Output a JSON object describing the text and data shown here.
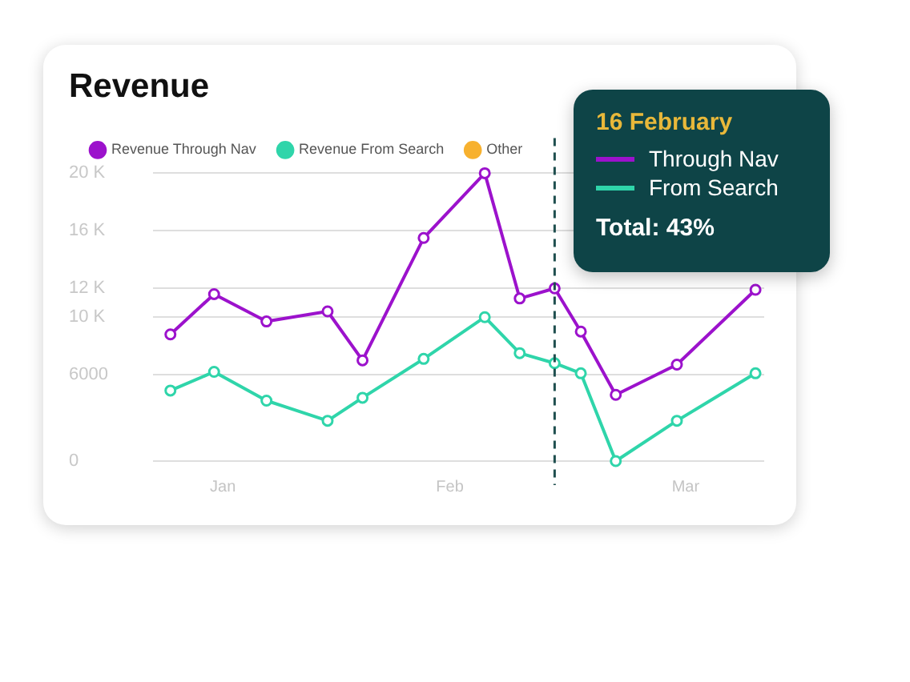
{
  "chart_data": {
    "type": "line",
    "title": "Revenue",
    "x": [
      "--01-03",
      "--01-08",
      "--01-14",
      "--01-21",
      "--01-25",
      "--02-01",
      "--02-08",
      "--02-12",
      "--02-16",
      "--02-19",
      "--02-23",
      "--03-02",
      "--03-11"
    ],
    "series": [
      {
        "name": "Revenue Through Nav",
        "color": "#9c12cc",
        "values": [
          8800,
          11600,
          9700,
          10400,
          7000,
          15500,
          20000,
          11300,
          12000,
          9000,
          4600,
          6700,
          11900
        ]
      },
      {
        "name": "Revenue From Search",
        "color": "#2fd5aa",
        "values": [
          4900,
          6200,
          4200,
          2800,
          4400,
          7100,
          10000,
          7500,
          6800,
          6100,
          0,
          2800,
          6100
        ]
      },
      {
        "name": "Other",
        "color": "#f7b12f",
        "values": [
          null,
          null,
          null,
          null,
          null,
          null,
          null,
          null,
          null,
          null,
          null,
          null,
          null
        ]
      }
    ],
    "xlim": [
      "--01-01",
      "--03-12"
    ],
    "xticks": [
      {
        "value": "--01-09",
        "label": "Jan"
      },
      {
        "value": "--02-04",
        "label": "Feb"
      },
      {
        "value": "--03-03",
        "label": "Mar"
      }
    ],
    "ylim": [
      0,
      20000
    ],
    "yticks": [
      0,
      6000,
      {
        "value": 10000,
        "label": "10 K"
      },
      {
        "value": 12000,
        "label": "12 K"
      },
      {
        "value": 16000,
        "label": "16 K"
      },
      {
        "value": 20000,
        "label": "20 K"
      }
    ],
    "ref_lines": [
      {
        "axis": "x",
        "value": "--02-16",
        "color": "#1f4f4f",
        "line_style": "dashed"
      }
    ],
    "annotations": [
      "16 February",
      "Through Nav",
      "From Search",
      "Total: 43%"
    ],
    "grid": "y",
    "legend": "top left",
    "marker": "circle",
    "line_style": "solid"
  }
}
